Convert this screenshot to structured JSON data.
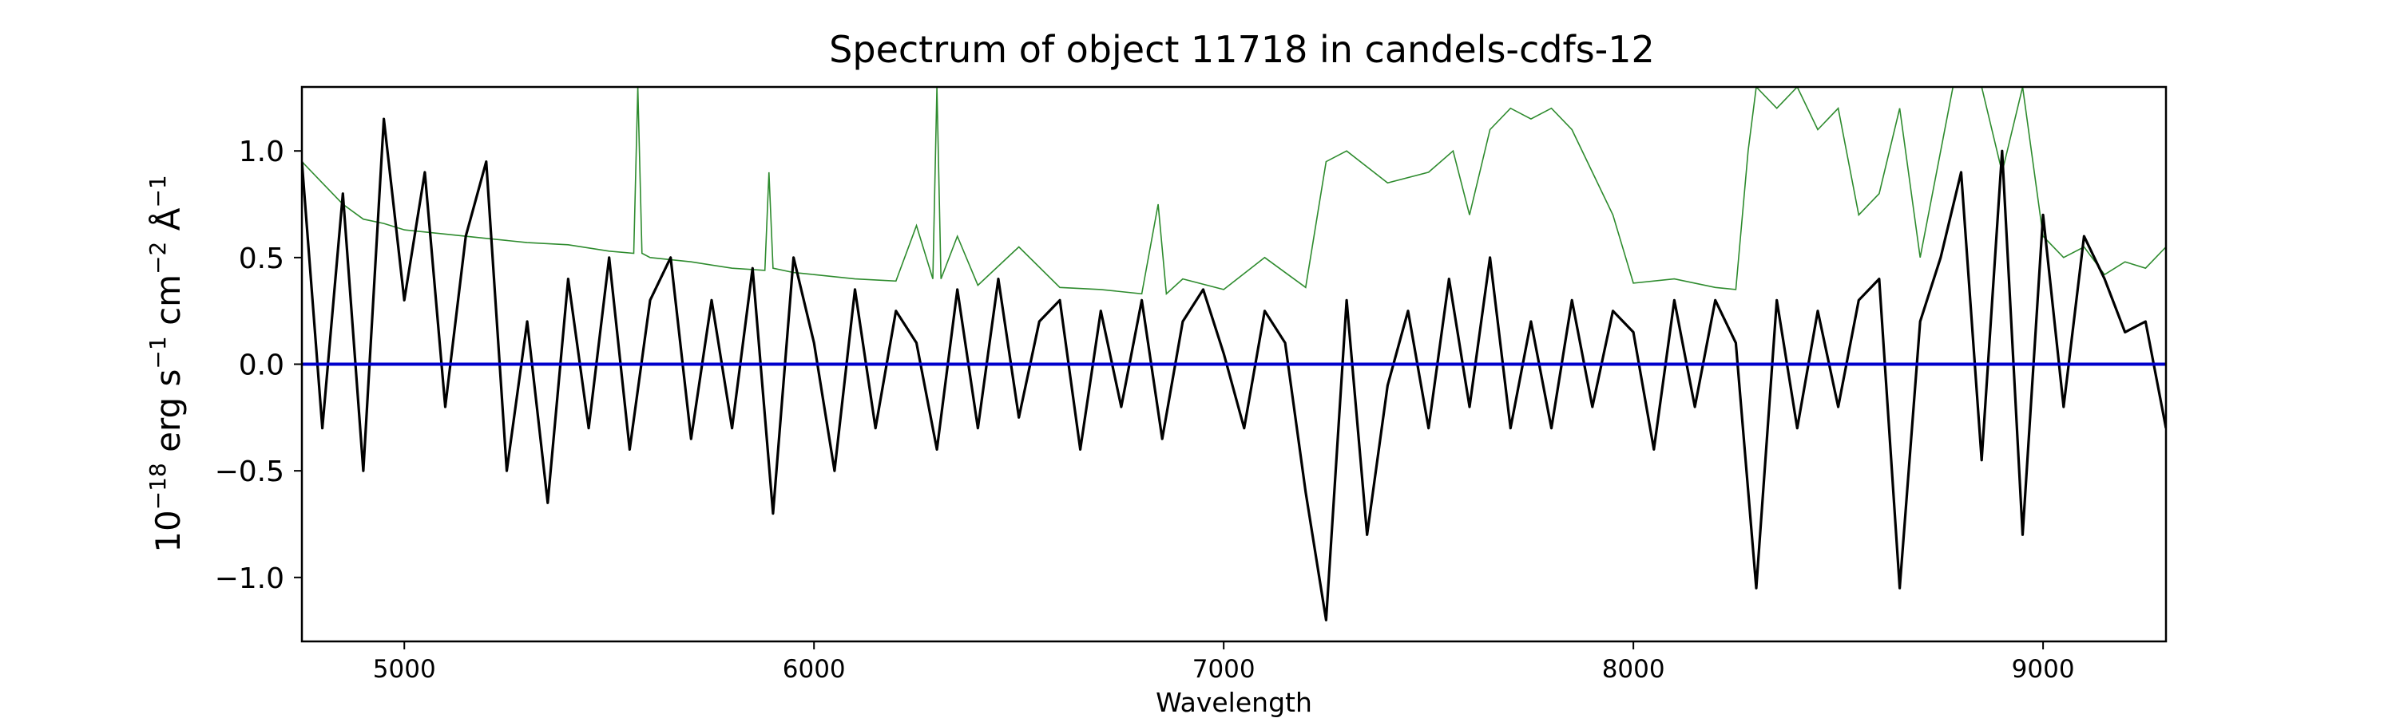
{
  "chart_data": {
    "type": "line",
    "title": "Spectrum of object 11718 in candels-cdfs-12",
    "xlabel": "Wavelength",
    "ylabel": {
      "base": "10",
      "exp": "−18",
      "unit1": " erg s",
      "exp1": "−1",
      "unit2": " cm",
      "exp2": "−2",
      "unit3": " Å",
      "exp3": "−1"
    },
    "xlim": [
      4750,
      9300
    ],
    "ylim": [
      -1.3,
      1.3
    ],
    "x_ticks": [
      5000,
      6000,
      7000,
      8000,
      9000
    ],
    "x_tick_labels": [
      "5000",
      "6000",
      "7000",
      "8000",
      "9000"
    ],
    "y_ticks": [
      1.0,
      0.5,
      0.0,
      -0.5,
      -1.0
    ],
    "y_tick_labels": [
      "1.0",
      "0.5",
      "0.0",
      "−0.5",
      "−1.0"
    ],
    "grid": false,
    "colors": {
      "flux": "#000000",
      "error": "#2e8b2e",
      "zero_line": "#0000cc"
    },
    "series": [
      {
        "role": "flux",
        "x": [
          4750,
          4800,
          4850,
          4900,
          4950,
          5000,
          5050,
          5100,
          5150,
          5200,
          5250,
          5300,
          5350,
          5400,
          5450,
          5500,
          5550,
          5600,
          5650,
          5700,
          5750,
          5800,
          5850,
          5900,
          5950,
          6000,
          6050,
          6100,
          6150,
          6200,
          6250,
          6300,
          6350,
          6400,
          6450,
          6500,
          6550,
          6600,
          6650,
          6700,
          6750,
          6800,
          6850,
          6900,
          6950,
          7000,
          7050,
          7100,
          7150,
          7200,
          7250,
          7300,
          7350,
          7400,
          7450,
          7500,
          7550,
          7600,
          7650,
          7700,
          7750,
          7800,
          7850,
          7900,
          7950,
          8000,
          8050,
          8100,
          8150,
          8200,
          8250,
          8300,
          8350,
          8400,
          8450,
          8500,
          8550,
          8600,
          8650,
          8700,
          8750,
          8800,
          8850,
          8900,
          8950,
          9000,
          9050,
          9100,
          9150,
          9200,
          9250,
          9300
        ],
        "y": [
          0.95,
          -0.3,
          0.8,
          -0.5,
          1.15,
          0.3,
          0.9,
          -0.2,
          0.6,
          0.95,
          -0.5,
          0.2,
          -0.65,
          0.4,
          -0.3,
          0.5,
          -0.4,
          0.3,
          0.5,
          -0.35,
          0.3,
          -0.3,
          0.45,
          -0.7,
          0.5,
          0.1,
          -0.5,
          0.35,
          -0.3,
          0.25,
          0.1,
          -0.4,
          0.35,
          -0.3,
          0.4,
          -0.25,
          0.2,
          0.3,
          -0.4,
          0.25,
          -0.2,
          0.3,
          -0.35,
          0.2,
          0.35,
          0.05,
          -0.3,
          0.25,
          0.1,
          -0.6,
          -1.2,
          0.3,
          -0.8,
          -0.1,
          0.25,
          -0.3,
          0.4,
          -0.2,
          0.5,
          -0.3,
          0.2,
          -0.3,
          0.3,
          -0.2,
          0.25,
          0.15,
          -0.4,
          0.3,
          -0.2,
          0.3,
          0.1,
          -1.05,
          0.3,
          -0.3,
          0.25,
          -0.2,
          0.3,
          0.4,
          -1.05,
          0.2,
          0.5,
          0.9,
          -0.45,
          1.0,
          -0.8,
          0.7,
          -0.2,
          0.6,
          0.4,
          0.15,
          0.2,
          -0.3
        ]
      },
      {
        "role": "error",
        "x": [
          4750,
          4800,
          4850,
          4900,
          4950,
          5000,
          5100,
          5200,
          5300,
          5400,
          5500,
          5560,
          5570,
          5580,
          5600,
          5700,
          5800,
          5880,
          5890,
          5900,
          5950,
          6000,
          6100,
          6200,
          6250,
          6290,
          6300,
          6310,
          6350,
          6400,
          6500,
          6600,
          6700,
          6800,
          6840,
          6860,
          6900,
          7000,
          7100,
          7200,
          7250,
          7300,
          7400,
          7500,
          7560,
          7600,
          7650,
          7700,
          7750,
          7800,
          7850,
          7900,
          7950,
          8000,
          8100,
          8200,
          8250,
          8280,
          8300,
          8350,
          8400,
          8450,
          8500,
          8550,
          8600,
          8650,
          8700,
          8750,
          8780,
          8800,
          8850,
          8900,
          8950,
          9000,
          9050,
          9100,
          9150,
          9200,
          9250,
          9300
        ],
        "y": [
          0.95,
          0.85,
          0.75,
          0.68,
          0.66,
          0.63,
          0.61,
          0.59,
          0.57,
          0.56,
          0.53,
          0.52,
          1.3,
          0.52,
          0.5,
          0.48,
          0.45,
          0.44,
          0.9,
          0.45,
          0.43,
          0.42,
          0.4,
          0.39,
          0.65,
          0.4,
          1.3,
          0.4,
          0.6,
          0.37,
          0.55,
          0.36,
          0.35,
          0.33,
          0.75,
          0.33,
          0.4,
          0.35,
          0.5,
          0.36,
          0.95,
          1.0,
          0.85,
          0.9,
          1.0,
          0.7,
          1.1,
          1.2,
          1.15,
          1.2,
          1.1,
          0.9,
          0.7,
          0.38,
          0.4,
          0.36,
          0.35,
          1.0,
          1.3,
          1.2,
          1.3,
          1.1,
          1.2,
          0.7,
          0.8,
          1.2,
          0.5,
          1.0,
          1.3,
          1.3,
          1.3,
          0.9,
          1.3,
          0.6,
          0.5,
          0.55,
          0.42,
          0.48,
          0.45,
          0.55
        ]
      }
    ],
    "zero_line": 0.0
  }
}
